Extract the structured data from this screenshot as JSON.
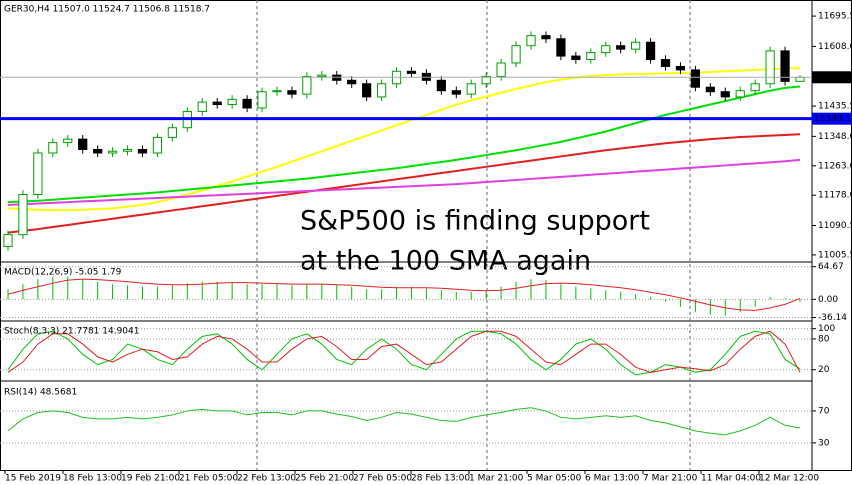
{
  "chart_data": [
    {
      "type": "candlestick",
      "title": "GER30,H4  11507.0 11524.7 11506.8 11518.7",
      "annotation": [
        "S&P500 is finding support",
        "at the 100 SMA again"
      ],
      "annotation_color": "#ff1f1f",
      "up_color": "#00a000",
      "down_color": "#000000",
      "open": [
        11030,
        11064,
        11180,
        11300,
        11330,
        11340,
        11310,
        11300,
        11305,
        11310,
        11300,
        11345,
        11373,
        11420,
        11447,
        11440,
        11455,
        11430,
        11477,
        11480,
        11470,
        11521,
        11525,
        11510,
        11500,
        11462,
        11500,
        11536,
        11530,
        11510,
        11480,
        11470,
        11500,
        11521,
        11560,
        11610,
        11639,
        11630,
        11580,
        11570,
        11590,
        11610,
        11600,
        11620,
        11570,
        11550,
        11540,
        11490,
        11477,
        11462,
        11480,
        11500,
        11595,
        11507.0
      ],
      "high": [
        11076,
        11192,
        11312,
        11342,
        11352,
        11352,
        11322,
        11317,
        11322,
        11322,
        11357,
        11385,
        11432,
        11459,
        11459,
        11467,
        11467,
        11489,
        11492,
        11492,
        11533,
        11537,
        11537,
        11522,
        11512,
        11512,
        11548,
        11548,
        11542,
        11522,
        11492,
        11512,
        11533,
        11572,
        11622,
        11651,
        11651,
        11642,
        11592,
        11602,
        11622,
        11622,
        11632,
        11632,
        11582,
        11562,
        11552,
        11502,
        11489,
        11492,
        11512,
        11607,
        11607,
        11524.7
      ],
      "low": [
        11018,
        11052,
        11168,
        11288,
        11318,
        11298,
        11288,
        11288,
        11293,
        11288,
        11288,
        11333,
        11361,
        11408,
        11428,
        11428,
        11418,
        11418,
        11465,
        11458,
        11458,
        11509,
        11498,
        11488,
        11450,
        11450,
        11488,
        11518,
        11498,
        11468,
        11458,
        11458,
        11488,
        11509,
        11548,
        11598,
        11618,
        11568,
        11558,
        11558,
        11578,
        11588,
        11588,
        11558,
        11538,
        11528,
        11478,
        11465,
        11450,
        11450,
        11468,
        11488,
        11495,
        11506.8
      ],
      "close": [
        11064,
        11180,
        11300,
        11330,
        11340,
        11310,
        11300,
        11305,
        11310,
        11300,
        11345,
        11373,
        11420,
        11447,
        11440,
        11455,
        11430,
        11477,
        11480,
        11470,
        11521,
        11525,
        11510,
        11500,
        11462,
        11500,
        11536,
        11530,
        11510,
        11480,
        11470,
        11500,
        11521,
        11560,
        11610,
        11639,
        11630,
        11580,
        11570,
        11590,
        11610,
        11600,
        11620,
        11570,
        11550,
        11540,
        11490,
        11477,
        11462,
        11480,
        11500,
        11595,
        11507,
        11518.7
      ],
      "series": [
        {
          "color": "#ffff00",
          "values": [
            11140,
            11138,
            11136,
            11135,
            11135,
            11136,
            11138,
            11140,
            11145,
            11150,
            11158,
            11168,
            11180,
            11192,
            11205,
            11218,
            11232,
            11246,
            11260,
            11275,
            11290,
            11305,
            11320,
            11335,
            11350,
            11365,
            11380,
            11395,
            11410,
            11425,
            11440,
            11452,
            11463,
            11474,
            11485,
            11495,
            11505,
            11512,
            11518,
            11522,
            11525,
            11527,
            11528,
            11529,
            11530,
            11531,
            11532,
            11534,
            11536,
            11538,
            11540,
            11542,
            11544,
            11545
          ]
        },
        {
          "color": "#00e000",
          "values": [
            11158,
            11160,
            11162,
            11165,
            11168,
            11171,
            11174,
            11177,
            11180,
            11183,
            11186,
            11190,
            11194,
            11198,
            11202,
            11206,
            11210,
            11214,
            11218,
            11222,
            11226,
            11231,
            11236,
            11241,
            11246,
            11251,
            11256,
            11262,
            11268,
            11274,
            11280,
            11287,
            11294,
            11301,
            11308,
            11316,
            11324,
            11332,
            11342,
            11352,
            11362,
            11374,
            11386,
            11398,
            11410,
            11420,
            11430,
            11440,
            11450,
            11460,
            11470,
            11480,
            11488,
            11492
          ]
        },
        {
          "color": "#e02020",
          "values": [
            11070,
            11075,
            11080,
            11086,
            11092,
            11098,
            11104,
            11110,
            11116,
            11122,
            11128,
            11134,
            11140,
            11146,
            11152,
            11158,
            11164,
            11170,
            11176,
            11182,
            11188,
            11194,
            11200,
            11206,
            11212,
            11218,
            11224,
            11230,
            11236,
            11242,
            11248,
            11254,
            11260,
            11266,
            11272,
            11278,
            11284,
            11290,
            11296,
            11302,
            11308,
            11313,
            11318,
            11323,
            11328,
            11332,
            11336,
            11340,
            11343,
            11346,
            11348,
            11350,
            11352,
            11354
          ]
        },
        {
          "color": "#e040e0",
          "values": [
            11150,
            11152,
            11154,
            11156,
            11158,
            11160,
            11162,
            11164,
            11166,
            11168,
            11170,
            11172,
            11174,
            11176,
            11178,
            11180,
            11182,
            11184,
            11186,
            11188,
            11190,
            11192,
            11194,
            11196,
            11198,
            11200,
            11202,
            11204,
            11206,
            11208,
            11210,
            11213,
            11216,
            11219,
            11222,
            11225,
            11228,
            11231,
            11234,
            11237,
            11240,
            11243,
            11246,
            11249,
            11252,
            11255,
            11258,
            11261,
            11264,
            11267,
            11270,
            11273,
            11276,
            11280
          ]
        }
      ],
      "hline": {
        "value": 11399.1,
        "label": "11399.1",
        "color": "#0000ff"
      },
      "last_price": {
        "value": 11518.7,
        "label": "11518.7"
      },
      "ylim": [
        10985,
        11742
      ],
      "yticks": [
        {
          "value": 11695.5,
          "label": "11695.5"
        },
        {
          "value": 11608,
          "label": "11608.0"
        },
        {
          "value": 11435.5,
          "label": "11435.5"
        },
        {
          "value": 11348,
          "label": "11348.0"
        },
        {
          "value": 11263,
          "label": "11263.0"
        },
        {
          "value": 11178,
          "label": "11178.0"
        },
        {
          "value": 11090.5,
          "label": "11090.5"
        },
        {
          "value": 11005.5,
          "label": "11005.5"
        }
      ],
      "grid": false,
      "time_labels": [
        "15 Feb 2019",
        "18 Feb 13:00",
        "19 Feb 21:00",
        "21 Feb 05:00",
        "22 Feb 13:00",
        "25 Feb 21:00",
        "27 Feb 05:00",
        "28 Feb 13:00",
        "1 Mar 21:00",
        "5 Mar 05:00",
        "6 Mar 13:00",
        "7 Mar 21:00",
        "11 Mar 04:00",
        "12 Mar 12:00"
      ]
    },
    {
      "type": "indicator",
      "title": "MACD(12,26,9) -5.05 1.79",
      "ylim": [
        -41,
        72
      ],
      "yticks": [
        64.67,
        {
          "value": 0,
          "label": "0.00"
        },
        -36.14
      ],
      "grid": true,
      "series": [
        {
          "color": "#00c000",
          "style": "bar",
          "values": [
            20,
            30,
            40,
            45,
            45,
            40,
            35,
            30,
            28,
            25,
            25,
            28,
            32,
            35,
            35,
            33,
            30,
            30,
            30,
            28,
            30,
            30,
            28,
            25,
            20,
            20,
            25,
            25,
            22,
            18,
            15,
            15,
            18,
            25,
            35,
            40,
            38,
            30,
            25,
            22,
            18,
            15,
            10,
            5,
            -5,
            -15,
            -25,
            -30,
            -32,
            -25,
            -15,
            5,
            2,
            -5.05
          ]
        },
        {
          "color": "#e02020",
          "style": "line",
          "values": [
            10,
            18,
            25,
            32,
            38,
            40,
            39,
            37,
            35,
            32,
            30,
            29,
            29,
            30,
            32,
            33,
            33,
            32,
            31,
            30,
            30,
            30,
            29,
            28,
            26,
            24,
            23,
            23,
            23,
            22,
            20,
            18,
            17,
            18,
            22,
            27,
            31,
            32,
            31,
            29,
            26,
            23,
            19,
            14,
            9,
            3,
            -4,
            -11,
            -17,
            -21,
            -22,
            -17,
            -10,
            1.79
          ]
        }
      ]
    },
    {
      "type": "indicator",
      "title": "Stoch(8,3,3) 21.7781 14.9041",
      "ylim": [
        0,
        113
      ],
      "yticks": [
        100,
        80,
        20
      ],
      "grid": true,
      "series": [
        {
          "color": "#00c000",
          "style": "line",
          "values": [
            20,
            60,
            90,
            95,
            80,
            50,
            30,
            40,
            70,
            60,
            40,
            30,
            60,
            85,
            90,
            70,
            40,
            20,
            50,
            80,
            90,
            70,
            40,
            30,
            60,
            80,
            60,
            30,
            20,
            50,
            80,
            95,
            95,
            90,
            70,
            40,
            20,
            40,
            70,
            80,
            60,
            30,
            10,
            15,
            30,
            25,
            15,
            20,
            50,
            85,
            95,
            90,
            40,
            21.7781
          ]
        },
        {
          "color": "#e02020",
          "style": "line",
          "values": [
            15,
            35,
            70,
            90,
            90,
            70,
            45,
            35,
            50,
            60,
            55,
            40,
            45,
            70,
            85,
            80,
            60,
            35,
            35,
            60,
            80,
            85,
            65,
            40,
            40,
            65,
            70,
            50,
            30,
            35,
            60,
            85,
            95,
            95,
            85,
            60,
            35,
            30,
            50,
            70,
            70,
            50,
            25,
            15,
            20,
            25,
            22,
            18,
            30,
            60,
            85,
            95,
            70,
            14.9041
          ]
        }
      ]
    },
    {
      "type": "indicator",
      "title": "RSI(14) 48.5681",
      "ylim": [
        -4,
        105
      ],
      "yticks": [
        70,
        30
      ],
      "grid": true,
      "series": [
        {
          "color": "#20c020",
          "style": "line",
          "values": [
            45,
            60,
            68,
            70,
            68,
            62,
            60,
            60,
            62,
            60,
            62,
            65,
            70,
            72,
            70,
            70,
            65,
            68,
            68,
            65,
            70,
            70,
            66,
            63,
            58,
            62,
            68,
            66,
            62,
            58,
            57,
            62,
            65,
            68,
            72,
            74,
            70,
            62,
            60,
            62,
            64,
            62,
            64,
            58,
            55,
            50,
            45,
            42,
            40,
            45,
            52,
            62,
            52,
            48.5681
          ]
        }
      ]
    }
  ]
}
